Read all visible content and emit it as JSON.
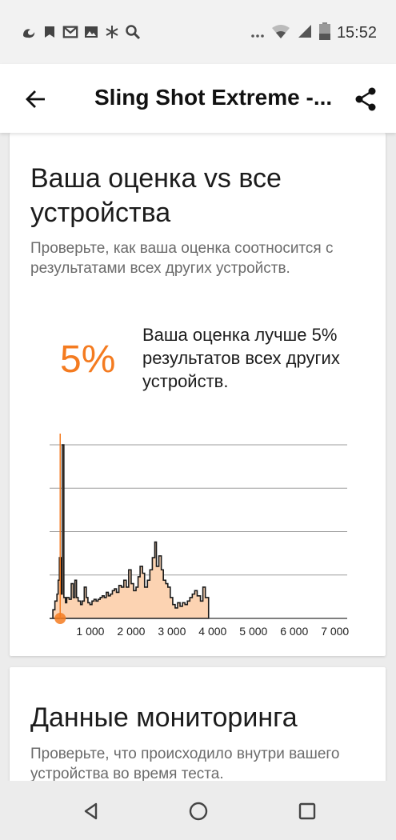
{
  "status_bar": {
    "time": "15:52",
    "left_icons": [
      "uc-browser-icon",
      "bookmark-icon",
      "gmail-icon",
      "image-icon",
      "snowflake-icon",
      "search-icon"
    ],
    "right_icons": [
      "more-dots-icon",
      "wifi-icon",
      "signal-icon",
      "battery-icon"
    ],
    "battery_level": "16"
  },
  "app_bar": {
    "title": "Sling Shot Extreme -..."
  },
  "comparison_card": {
    "title": "Ваша оценка vs все устройства",
    "description": "Проверьте, как ваша оценка соотносится с результатами всех других устройств.",
    "percent": "5%",
    "percent_text": "Ваша оценка лучше 5% результатов всех других устройств."
  },
  "chart_data": {
    "type": "area",
    "x_ticks": [
      "1 000",
      "2 000",
      "3 000",
      "4 000",
      "5 000",
      "6 000",
      "7 000"
    ],
    "xlim": [
      0,
      7300
    ],
    "ylim": [
      0,
      100
    ],
    "grid": true,
    "fill_color": "#fcd3b2",
    "line_color": "#1a1a1a",
    "marker_color": "#f47b20",
    "your_score": 260,
    "x": [
      0,
      80,
      130,
      180,
      210,
      240,
      280,
      310,
      350,
      390,
      420,
      480,
      530,
      580,
      620,
      660,
      700,
      760,
      800,
      850,
      900,
      940,
      990,
      1040,
      1090,
      1140,
      1190,
      1240,
      1290,
      1340,
      1390,
      1440,
      1490,
      1540,
      1590,
      1640,
      1700,
      1760,
      1820,
      1880,
      1940,
      2000,
      2060,
      2120,
      2170,
      2220,
      2280,
      2330,
      2400,
      2460,
      2520,
      2580,
      2620,
      2680,
      2740,
      2790,
      2850,
      2900,
      2960,
      3020,
      3080,
      3140,
      3200,
      3260,
      3320,
      3380,
      3440,
      3500,
      3560,
      3620,
      3700,
      3760,
      3820,
      3900
    ],
    "y": [
      0,
      5,
      10,
      14,
      22,
      35,
      14,
      100,
      12,
      9,
      12,
      11,
      20,
      12,
      22,
      12,
      10,
      8,
      10,
      18,
      12,
      9,
      8,
      10,
      11,
      10,
      11,
      12,
      13,
      12,
      15,
      13,
      14,
      16,
      17,
      15,
      19,
      18,
      22,
      18,
      28,
      20,
      16,
      18,
      24,
      30,
      26,
      18,
      22,
      28,
      35,
      44,
      30,
      36,
      28,
      22,
      20,
      18,
      12,
      8,
      6,
      9,
      7,
      9,
      8,
      10,
      12,
      14,
      16,
      13,
      10,
      18,
      12,
      0
    ]
  },
  "monitoring_card": {
    "title": "Данные мониторинга",
    "description": "Проверьте, что происходило внутри вашего устройства во время теста."
  },
  "nav_bar": {
    "buttons": [
      "back-triangle-icon",
      "home-circle-icon",
      "recents-square-icon"
    ]
  }
}
